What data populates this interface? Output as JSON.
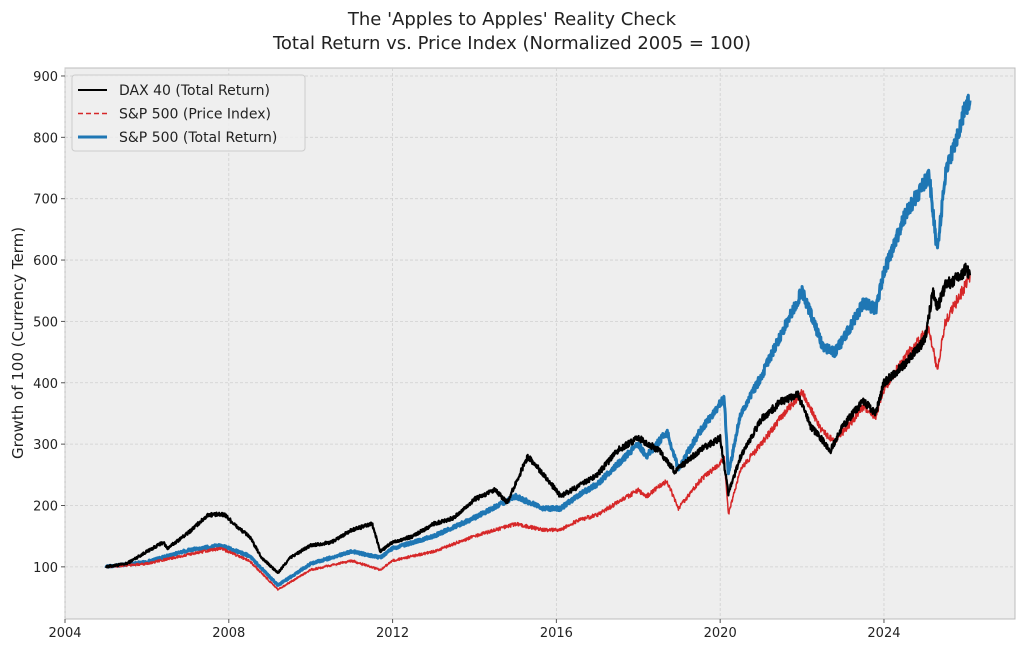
{
  "chart_data": {
    "type": "line",
    "title": "The 'Apples to Apples' Reality Check",
    "subtitle": "Total Return vs. Price Index (Normalized 2005 = 100)",
    "xlabel": "",
    "ylabel": "Growth of 100 (Currency Term)",
    "xlim": [
      2004,
      2027.2
    ],
    "ylim": [
      15,
      913
    ],
    "xticks": [
      2004,
      2008,
      2012,
      2016,
      2020,
      2024
    ],
    "yticks": [
      100,
      200,
      300,
      400,
      500,
      600,
      700,
      800,
      900
    ],
    "grid": true,
    "legend_position": "top-left",
    "series": [
      {
        "name": "DAX 40 (Total Return)",
        "color": "#000000",
        "style": "solid",
        "points": [
          [
            2005.0,
            100
          ],
          [
            2005.5,
            105
          ],
          [
            2006.0,
            125
          ],
          [
            2006.4,
            140
          ],
          [
            2006.5,
            130
          ],
          [
            2007.0,
            155
          ],
          [
            2007.5,
            185
          ],
          [
            2007.9,
            185
          ],
          [
            2008.2,
            165
          ],
          [
            2008.5,
            150
          ],
          [
            2008.8,
            115
          ],
          [
            2009.2,
            90
          ],
          [
            2009.5,
            115
          ],
          [
            2010.0,
            135
          ],
          [
            2010.5,
            140
          ],
          [
            2011.0,
            160
          ],
          [
            2011.5,
            170
          ],
          [
            2011.7,
            125
          ],
          [
            2012.0,
            140
          ],
          [
            2012.5,
            150
          ],
          [
            2013.0,
            170
          ],
          [
            2013.5,
            180
          ],
          [
            2014.0,
            210
          ],
          [
            2014.5,
            225
          ],
          [
            2014.8,
            205
          ],
          [
            2015.3,
            280
          ],
          [
            2015.7,
            250
          ],
          [
            2016.1,
            215
          ],
          [
            2016.5,
            230
          ],
          [
            2017.0,
            250
          ],
          [
            2017.5,
            290
          ],
          [
            2018.0,
            310
          ],
          [
            2018.5,
            290
          ],
          [
            2018.9,
            255
          ],
          [
            2019.5,
            290
          ],
          [
            2020.0,
            310
          ],
          [
            2020.2,
            220
          ],
          [
            2020.5,
            280
          ],
          [
            2021.0,
            340
          ],
          [
            2021.5,
            370
          ],
          [
            2021.9,
            380
          ],
          [
            2022.2,
            330
          ],
          [
            2022.7,
            290
          ],
          [
            2023.0,
            330
          ],
          [
            2023.5,
            370
          ],
          [
            2023.8,
            350
          ],
          [
            2024.0,
            400
          ],
          [
            2024.5,
            430
          ],
          [
            2025.0,
            470
          ],
          [
            2025.2,
            550
          ],
          [
            2025.3,
            520
          ],
          [
            2025.5,
            560
          ],
          [
            2025.8,
            570
          ],
          [
            2026.0,
            585
          ],
          [
            2026.1,
            575
          ]
        ]
      },
      {
        "name": "S&P 500 (Price Index)",
        "color": "#d62728",
        "style": "dashed",
        "points": [
          [
            2005.0,
            100
          ],
          [
            2006.0,
            105
          ],
          [
            2007.0,
            120
          ],
          [
            2007.8,
            130
          ],
          [
            2008.5,
            110
          ],
          [
            2009.2,
            63
          ],
          [
            2010.0,
            95
          ],
          [
            2011.0,
            110
          ],
          [
            2011.7,
            95
          ],
          [
            2012.0,
            110
          ],
          [
            2013.0,
            125
          ],
          [
            2014.0,
            150
          ],
          [
            2015.0,
            170
          ],
          [
            2015.7,
            160
          ],
          [
            2016.1,
            160
          ],
          [
            2016.5,
            175
          ],
          [
            2017.0,
            185
          ],
          [
            2018.0,
            225
          ],
          [
            2018.2,
            215
          ],
          [
            2018.7,
            240
          ],
          [
            2018.98,
            195
          ],
          [
            2019.5,
            240
          ],
          [
            2020.1,
            275
          ],
          [
            2020.2,
            185
          ],
          [
            2020.5,
            260
          ],
          [
            2021.0,
            300
          ],
          [
            2021.5,
            345
          ],
          [
            2022.0,
            385
          ],
          [
            2022.5,
            320
          ],
          [
            2022.8,
            305
          ],
          [
            2023.0,
            320
          ],
          [
            2023.5,
            360
          ],
          [
            2023.8,
            345
          ],
          [
            2024.0,
            390
          ],
          [
            2024.5,
            440
          ],
          [
            2025.1,
            490
          ],
          [
            2025.3,
            420
          ],
          [
            2025.5,
            500
          ],
          [
            2026.0,
            560
          ],
          [
            2026.1,
            575
          ]
        ]
      },
      {
        "name": "S&P 500 (Total Return)",
        "color": "#1f77b4",
        "style": "solid-thick",
        "points": [
          [
            2005.0,
            100
          ],
          [
            2006.0,
            108
          ],
          [
            2007.0,
            127
          ],
          [
            2007.8,
            135
          ],
          [
            2008.5,
            118
          ],
          [
            2009.2,
            70
          ],
          [
            2010.0,
            105
          ],
          [
            2011.0,
            125
          ],
          [
            2011.7,
            115
          ],
          [
            2012.0,
            130
          ],
          [
            2013.0,
            150
          ],
          [
            2014.0,
            180
          ],
          [
            2015.0,
            215
          ],
          [
            2015.7,
            195
          ],
          [
            2016.1,
            195
          ],
          [
            2016.5,
            215
          ],
          [
            2017.0,
            235
          ],
          [
            2018.0,
            300
          ],
          [
            2018.2,
            280
          ],
          [
            2018.7,
            320
          ],
          [
            2018.98,
            260
          ],
          [
            2019.5,
            320
          ],
          [
            2020.1,
            375
          ],
          [
            2020.2,
            250
          ],
          [
            2020.5,
            350
          ],
          [
            2021.0,
            410
          ],
          [
            2021.5,
            480
          ],
          [
            2022.0,
            550
          ],
          [
            2022.5,
            460
          ],
          [
            2022.8,
            450
          ],
          [
            2023.0,
            470
          ],
          [
            2023.5,
            530
          ],
          [
            2023.8,
            520
          ],
          [
            2024.0,
            580
          ],
          [
            2024.5,
            670
          ],
          [
            2025.1,
            740
          ],
          [
            2025.3,
            615
          ],
          [
            2025.5,
            740
          ],
          [
            2026.0,
            850
          ],
          [
            2026.1,
            860
          ]
        ]
      }
    ]
  }
}
